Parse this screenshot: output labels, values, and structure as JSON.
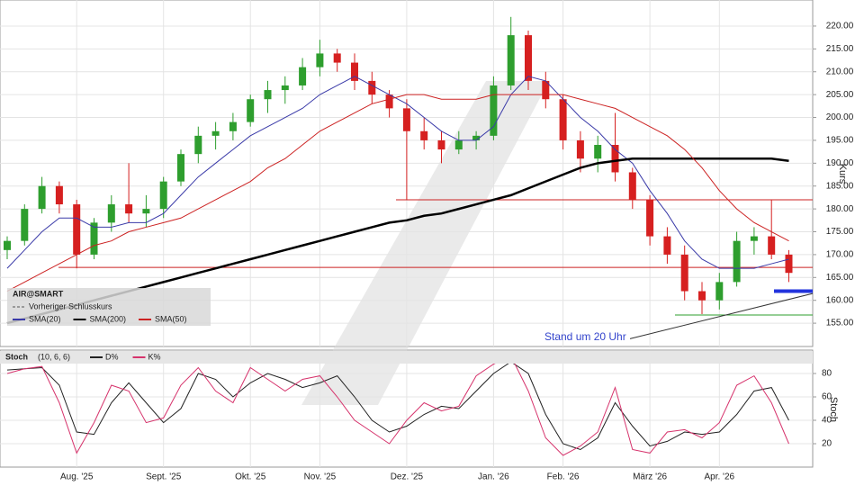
{
  "chart_data": [
    {
      "type": "candlestick",
      "categories": [
        null,
        null,
        null,
        null,
        "Aug. '25",
        null,
        null,
        null,
        null,
        "Sept. '25",
        null,
        null,
        null,
        null,
        "Okt. '25",
        null,
        null,
        null,
        "Nov. '25",
        null,
        null,
        null,
        null,
        "Dez. '25",
        null,
        null,
        null,
        null,
        "Jan. '26",
        null,
        null,
        null,
        "Feb. '26",
        null,
        null,
        null,
        null,
        "März '26",
        null,
        null,
        null,
        "Apr. '26",
        null,
        null,
        null,
        null
      ],
      "candles": {
        "name": "AIR@SMART",
        "up_color": "#2e9e2e",
        "down_color": "#d62020",
        "open": [
          171,
          173,
          180,
          185,
          181,
          170,
          177,
          181,
          179,
          180,
          186,
          192,
          196,
          197,
          199,
          204,
          206,
          207,
          211,
          214,
          212,
          208,
          205,
          202,
          197,
          195,
          193,
          195,
          196,
          207,
          218,
          208,
          204,
          195,
          191,
          194,
          188,
          182,
          174,
          170,
          162,
          160,
          164,
          173,
          174,
          170
        ],
        "high": [
          174,
          181,
          187,
          186,
          182,
          178,
          183,
          190,
          183,
          187,
          193,
          198,
          199,
          201,
          205,
          208,
          209,
          213,
          217,
          215,
          214,
          210,
          206,
          204,
          200,
          197,
          197,
          197,
          209,
          222,
          219,
          210,
          205,
          197,
          196,
          201,
          189,
          183,
          176,
          172,
          164,
          166,
          175,
          176,
          182,
          171
        ],
        "low": [
          169,
          172,
          179,
          179,
          167,
          169,
          175,
          177,
          176,
          178,
          185,
          190,
          193,
          195,
          198,
          201,
          203,
          206,
          209,
          210,
          206,
          203,
          200,
          182,
          193,
          190,
          192,
          193,
          195,
          206,
          206,
          202,
          193,
          188,
          188,
          186,
          180,
          172,
          168,
          160,
          157,
          158,
          163,
          170,
          169,
          164
        ],
        "close": [
          173,
          180,
          185,
          181,
          170,
          177,
          181,
          179,
          180,
          186,
          192,
          196,
          197,
          199,
          204,
          206,
          207,
          211,
          214,
          212,
          208,
          205,
          202,
          197,
          195,
          193,
          195,
          196,
          207,
          218,
          208,
          204,
          195,
          191,
          194,
          188,
          182,
          174,
          170,
          162,
          160,
          164,
          173,
          174,
          170,
          166
        ]
      },
      "previous_close_label": "Vorheriger Schlusskurs",
      "series": [
        {
          "name": "SMA(20)",
          "color": "#3a3aa8",
          "values": [
            167,
            171,
            175,
            178,
            178,
            176,
            176,
            177,
            177,
            179,
            183,
            187,
            190,
            193,
            196,
            198,
            200,
            202,
            205,
            207,
            209,
            207,
            205,
            203,
            200,
            197,
            195,
            195,
            198,
            205,
            209,
            208,
            204,
            200,
            197,
            193,
            190,
            184,
            179,
            173,
            169,
            167,
            167,
            167,
            168,
            169
          ]
        },
        {
          "name": "SMA(200)",
          "color": "#000000",
          "values": [
            155,
            156,
            157,
            158,
            159,
            160,
            161,
            162,
            163,
            164,
            165,
            166,
            167,
            168,
            169,
            170,
            171,
            172,
            173,
            174,
            175,
            176,
            177,
            177.5,
            178.5,
            179,
            180,
            181,
            182,
            183,
            184.5,
            186,
            187.5,
            189,
            190,
            190.5,
            191,
            191,
            191,
            191,
            191,
            191,
            191,
            191,
            191,
            190.5
          ]
        },
        {
          "name": "SMA(50)",
          "color": "#cc2222",
          "values": [
            162,
            164,
            166,
            168,
            170,
            172,
            173,
            175,
            176,
            177,
            178,
            180,
            182,
            184,
            186,
            189,
            191,
            194,
            197,
            199,
            201,
            203,
            204,
            205,
            205,
            204,
            204,
            204,
            205,
            205,
            205,
            205,
            205,
            204,
            203,
            202,
            200,
            198,
            196,
            193,
            189,
            184,
            180,
            177,
            175,
            173
          ]
        }
      ],
      "levels": [
        {
          "value": 182,
          "color": "#cc2222"
        },
        {
          "value": 167.2,
          "color": "#cc2222"
        },
        {
          "value": 156.8,
          "color": "#2e9e2e"
        },
        {
          "value": 162,
          "color": "#2233dd"
        }
      ],
      "trendline": [
        151.6,
        161.5
      ],
      "annotation": "Stand um 20 Uhr",
      "y_label": "Kurs",
      "ylim": [
        149.9,
        225.7
      ],
      "yticks": [
        {
          "value": 155,
          "label": "155.00"
        },
        {
          "value": 160,
          "label": "160.00"
        },
        {
          "value": 165,
          "label": "165.00"
        },
        {
          "value": 170,
          "label": "170.00"
        },
        {
          "value": 175,
          "label": "175.00"
        },
        {
          "value": 180,
          "label": "180.00"
        },
        {
          "value": 185,
          "label": "185.00"
        },
        {
          "value": 190,
          "label": "190.00"
        },
        {
          "value": 195,
          "label": "195.00"
        },
        {
          "value": 200,
          "label": "200.00"
        },
        {
          "value": 205,
          "label": "205.00"
        },
        {
          "value": 210,
          "label": "210.00"
        },
        {
          "value": 215,
          "label": "215.00"
        },
        {
          "value": 220,
          "label": "220.00"
        }
      ],
      "grid": true
    },
    {
      "type": "line",
      "title": "Stoch",
      "params": "(10, 6, 6)",
      "y_label": "Stoch",
      "series": [
        {
          "name": "D%",
          "color": "#222222",
          "values": [
            83,
            84,
            85,
            70,
            30,
            28,
            55,
            72,
            55,
            38,
            50,
            80,
            75,
            60,
            72,
            80,
            75,
            68,
            72,
            78,
            60,
            40,
            30,
            35,
            45,
            52,
            50,
            65,
            80,
            90,
            80,
            45,
            20,
            15,
            25,
            55,
            35,
            18,
            22,
            30,
            28,
            30,
            45,
            65,
            68,
            40
          ]
        },
        {
          "name": "K%",
          "color": "#d6336c",
          "values": [
            80,
            84,
            86,
            55,
            12,
            38,
            70,
            65,
            38,
            42,
            70,
            85,
            65,
            55,
            85,
            75,
            65,
            75,
            78,
            60,
            40,
            30,
            20,
            40,
            55,
            48,
            52,
            78,
            88,
            95,
            65,
            25,
            10,
            18,
            30,
            68,
            15,
            12,
            30,
            32,
            25,
            38,
            70,
            78,
            55,
            20
          ]
        }
      ],
      "ylim": [
        0,
        100
      ],
      "yticks": [
        20,
        40,
        60,
        80
      ],
      "grid": true
    }
  ]
}
